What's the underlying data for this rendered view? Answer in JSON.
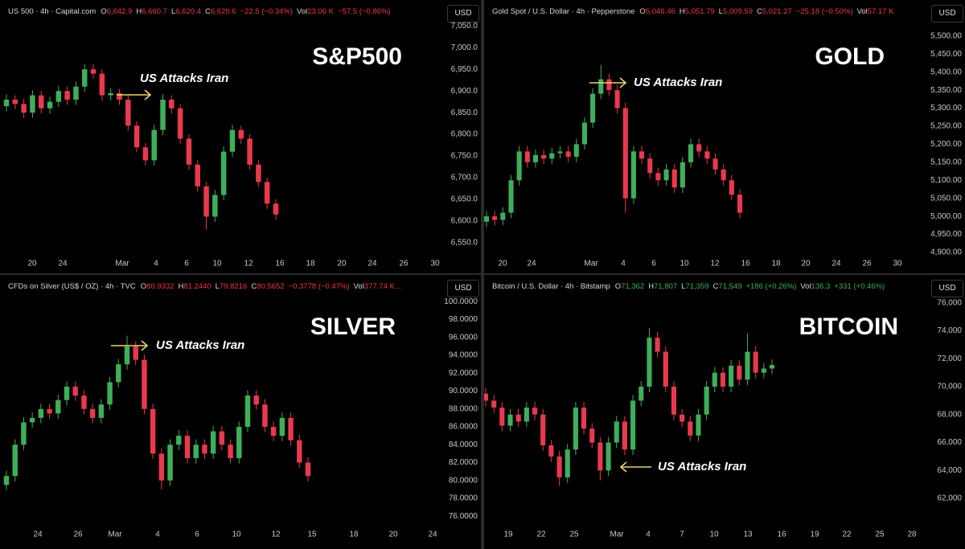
{
  "chart_data": [
    {
      "type": "candlestick",
      "title": "S&P500",
      "annotation": "US Attacks Iran",
      "currency": "USD",
      "legend": {
        "symbol": "US 500 · 4h · Capital.com",
        "fields": [
          {
            "label": "O",
            "value": "6,642.9"
          },
          {
            "label": "H",
            "value": "6,660.7"
          },
          {
            "label": "L",
            "value": "6,620.4"
          },
          {
            "label": "C",
            "value": "6,620.6"
          }
        ],
        "change": "−22.5 (−0.34%)",
        "volume": {
          "label": "Vol",
          "value": "23.06 K"
        },
        "volume_change": "−57.5 (−0.86%)",
        "color": "#f23645"
      },
      "up_color": "#3fae5a",
      "down_color": "#e8394d",
      "open": [
        6865,
        6880,
        6870,
        6850,
        6890,
        6860,
        6875,
        6900,
        6880,
        6910,
        6950,
        6940,
        6890,
        6895,
        6880,
        6820,
        6770,
        6740,
        6810,
        6880,
        6860,
        6790,
        6730,
        6680,
        6610,
        6660,
        6760,
        6810,
        6790,
        6730,
        6690,
        6640
      ],
      "high": [
        6892,
        6890,
        6882,
        6902,
        6900,
        6887,
        6912,
        6910,
        6922,
        6962,
        6962,
        6950,
        6907,
        6905,
        6890,
        6830,
        6780,
        6822,
        6892,
        6890,
        6870,
        6800,
        6740,
        6690,
        6672,
        6772,
        6822,
        6820,
        6800,
        6740,
        6700,
        6650
      ],
      "low": [
        6853,
        6858,
        6838,
        6838,
        6848,
        6848,
        6863,
        6868,
        6868,
        6898,
        6928,
        6878,
        6878,
        6868,
        6808,
        6758,
        6728,
        6728,
        6798,
        6848,
        6778,
        6718,
        6668,
        6580,
        6598,
        6648,
        6748,
        6778,
        6718,
        6678,
        6628,
        6603
      ],
      "close": [
        6880,
        6870,
        6850,
        6890,
        6860,
        6875,
        6900,
        6880,
        6910,
        6950,
        6940,
        6890,
        6895,
        6880,
        6820,
        6770,
        6740,
        6810,
        6880,
        6860,
        6790,
        6730,
        6680,
        6610,
        6660,
        6760,
        6810,
        6790,
        6730,
        6690,
        6640,
        6615
      ],
      "ylim": [
        6520,
        7110
      ],
      "yticks": [
        {
          "value": 6550,
          "label": "6,550.0"
        },
        {
          "value": 6600,
          "label": "6,600.0"
        },
        {
          "value": 6650,
          "label": "6,650.0"
        },
        {
          "value": 6700,
          "label": "6,700.0"
        },
        {
          "value": 6750,
          "label": "6,750.0"
        },
        {
          "value": 6800,
          "label": "6,800.0"
        },
        {
          "value": 6850,
          "label": "6,850.0"
        },
        {
          "value": 6900,
          "label": "6,900.0"
        },
        {
          "value": 6950,
          "label": "6,950.0"
        },
        {
          "value": 7000,
          "label": "7,000.0"
        },
        {
          "value": 7050,
          "label": "7,050.0"
        }
      ],
      "x_labels": [
        "20",
        "24",
        "Mar",
        "4",
        "6",
        "10",
        "12",
        "16",
        "18",
        "20",
        "24",
        "26",
        "30"
      ]
    },
    {
      "type": "candlestick",
      "title": "GOLD",
      "annotation": "US Attacks Iran",
      "currency": "USD",
      "legend": {
        "symbol": "Gold Spot / U.S. Dollar · 4h · Pepperstone",
        "fields": [
          {
            "label": "O",
            "value": "5,046.46"
          },
          {
            "label": "H",
            "value": "5,051.79"
          },
          {
            "label": "L",
            "value": "5,009.59"
          },
          {
            "label": "C",
            "value": "5,021.27"
          }
        ],
        "change": "−25.18 (−0.50%)",
        "volume": {
          "label": "Vol",
          "value": "57.17 K"
        },
        "color": "#f23645"
      },
      "up_color": "#3fae5a",
      "down_color": "#e8394d",
      "open": [
        4985,
        5000,
        4990,
        5010,
        5100,
        5180,
        5150,
        5170,
        5160,
        5175,
        5180,
        5165,
        5200,
        5260,
        5340,
        5380,
        5350,
        5300,
        5050,
        5180,
        5160,
        5120,
        5100,
        5130,
        5080,
        5150,
        5200,
        5180,
        5160,
        5130,
        5100,
        5060
      ],
      "high": [
        5015,
        5015,
        5025,
        5115,
        5195,
        5195,
        5185,
        5185,
        5190,
        5195,
        5195,
        5215,
        5275,
        5355,
        5420,
        5395,
        5365,
        5315,
        5195,
        5195,
        5175,
        5135,
        5145,
        5145,
        5165,
        5215,
        5215,
        5195,
        5175,
        5145,
        5115,
        5075
      ],
      "low": [
        4970,
        4975,
        4975,
        4995,
        5085,
        5135,
        5135,
        5145,
        5145,
        5160,
        5150,
        5150,
        5185,
        5245,
        5325,
        5335,
        5285,
        5010,
        5035,
        5145,
        5105,
        5085,
        5085,
        5065,
        5065,
        5135,
        5165,
        5145,
        5115,
        5085,
        5045,
        4995
      ],
      "close": [
        5000,
        4990,
        5010,
        5100,
        5180,
        5150,
        5170,
        5160,
        5175,
        5180,
        5165,
        5200,
        5260,
        5340,
        5380,
        5350,
        5300,
        5050,
        5180,
        5160,
        5120,
        5100,
        5130,
        5080,
        5150,
        5200,
        5180,
        5160,
        5130,
        5100,
        5060,
        5010
      ],
      "ylim": [
        4891,
        5600
      ],
      "yticks": [
        {
          "value": 4900,
          "label": "4,900.00"
        },
        {
          "value": 4950,
          "label": "4,950.00"
        },
        {
          "value": 5000,
          "label": "5,000.00"
        },
        {
          "value": 5050,
          "label": "5,050.00"
        },
        {
          "value": 5100,
          "label": "5,100.00"
        },
        {
          "value": 5150,
          "label": "5,150.00"
        },
        {
          "value": 5200,
          "label": "5,200.00"
        },
        {
          "value": 5250,
          "label": "5,250.00"
        },
        {
          "value": 5300,
          "label": "5,300.00"
        },
        {
          "value": 5350,
          "label": "5,350.00"
        },
        {
          "value": 5400,
          "label": "5,400.00"
        },
        {
          "value": 5450,
          "label": "5,450.00"
        },
        {
          "value": 5500,
          "label": "5,500.00"
        }
      ],
      "x_labels": [
        "20",
        "24",
        "Mar",
        "4",
        "6",
        "10",
        "12",
        "16",
        "18",
        "20",
        "24",
        "26",
        "30"
      ]
    },
    {
      "type": "candlestick",
      "title": "SILVER",
      "annotation": "US Attacks Iran",
      "currency": "USD",
      "legend": {
        "symbol": "CFDs on Silver (US$ / OZ) · 4h · TVC",
        "fields": [
          {
            "label": "O",
            "value": "80.9332"
          },
          {
            "label": "H",
            "value": "81.2440"
          },
          {
            "label": "L",
            "value": "79.8216"
          },
          {
            "label": "C",
            "value": "80.5652"
          }
        ],
        "change": "−0.3778 (−0.47%)",
        "volume": {
          "label": "Vol",
          "value": "377.74 K..."
        },
        "color": "#f23645"
      },
      "up_color": "#3fae5a",
      "down_color": "#e8394d",
      "open": [
        79.5,
        80.5,
        84,
        86.5,
        87,
        88,
        87.5,
        89,
        90.5,
        89.5,
        88,
        87,
        88.5,
        91,
        93,
        95,
        93.5,
        88,
        83,
        80,
        84,
        85,
        82.5,
        84,
        83,
        85.5,
        84,
        82.5,
        86,
        89.5,
        88.5,
        86,
        85,
        87,
        84.5,
        82
      ],
      "high": [
        81.1,
        84.6,
        87.1,
        87.6,
        88.6,
        88.6,
        89.6,
        91.1,
        91.1,
        90.1,
        88.6,
        89.1,
        91.6,
        93.6,
        96.2,
        95.6,
        94.1,
        88.6,
        83.6,
        84.6,
        85.6,
        85.6,
        84.6,
        84.6,
        86.1,
        86.1,
        84.6,
        86.6,
        90.1,
        90.1,
        89.1,
        86.6,
        87.6,
        87.6,
        85.1,
        82.6
      ],
      "low": [
        78.9,
        79.9,
        83.4,
        85.9,
        86.4,
        86.9,
        86.9,
        88.4,
        88.9,
        87.4,
        86.4,
        86.4,
        87.9,
        90.4,
        92.4,
        92.9,
        87.4,
        82.4,
        79.0,
        79.4,
        83.4,
        81.9,
        81.9,
        82.4,
        82.4,
        83.4,
        81.9,
        81.9,
        85.4,
        87.9,
        85.4,
        84.4,
        84.4,
        83.9,
        81.4,
        79.9
      ],
      "close": [
        80.5,
        84,
        86.5,
        87,
        88,
        87.5,
        89,
        90.5,
        89.5,
        88,
        87,
        88.5,
        91,
        93,
        95,
        93.5,
        88,
        83,
        80,
        84,
        85,
        82.5,
        84,
        83,
        85.5,
        84,
        82.5,
        86,
        89.5,
        88.5,
        86,
        85,
        87,
        84.5,
        82,
        80.5
      ],
      "ylim": [
        74.4,
        103
      ],
      "yticks": [
        {
          "value": 76,
          "label": "76.0000"
        },
        {
          "value": 78,
          "label": "78.0000"
        },
        {
          "value": 80,
          "label": "80.0000"
        },
        {
          "value": 82,
          "label": "82.0000"
        },
        {
          "value": 84,
          "label": "84.0000"
        },
        {
          "value": 86,
          "label": "86.0000"
        },
        {
          "value": 88,
          "label": "88.0000"
        },
        {
          "value": 90,
          "label": "90.0000"
        },
        {
          "value": 92,
          "label": "92.0000"
        },
        {
          "value": 94,
          "label": "94.0000"
        },
        {
          "value": 96,
          "label": "96.0000"
        },
        {
          "value": 98,
          "label": "98.0000"
        },
        {
          "value": 100,
          "label": "100.0000"
        }
      ],
      "x_labels": [
        "24",
        "26",
        "Mar",
        "4",
        "6",
        "10",
        "12",
        "15",
        "18",
        "20",
        "24"
      ]
    },
    {
      "type": "candlestick",
      "title": "BITCOIN",
      "annotation": "US Attacks Iran",
      "currency": "USD",
      "legend": {
        "symbol": "Bitcoin / U.S. Dollar · 4h · Bitstamp",
        "fields": [
          {
            "label": "O",
            "value": "71,362"
          },
          {
            "label": "H",
            "value": "71,807"
          },
          {
            "label": "L",
            "value": "71,359"
          },
          {
            "label": "C",
            "value": "71,549"
          }
        ],
        "change": "+186 (+0.26%)",
        "volume": {
          "label": "Vol",
          "value": "136.3"
        },
        "volume_change": "+331 (+0.46%)",
        "color": "#3fae5a"
      },
      "up_color": "#3fae5a",
      "down_color": "#e8394d",
      "open": [
        69500,
        69000,
        68500,
        67200,
        68000,
        67500,
        68500,
        68000,
        65800,
        65000,
        63500,
        65500,
        68500,
        67000,
        66000,
        64000,
        66000,
        67500,
        65500,
        69000,
        70000,
        73500,
        72500,
        70000,
        68000,
        67500,
        66500,
        68000,
        70000,
        71000,
        70000,
        71500,
        70500,
        72500,
        71000,
        71300
      ],
      "high": [
        69900,
        69400,
        68900,
        68400,
        68400,
        68900,
        68900,
        68400,
        66200,
        65400,
        65900,
        68900,
        68900,
        67400,
        66400,
        66400,
        67900,
        67900,
        69400,
        70400,
        74200,
        73900,
        72900,
        70400,
        68400,
        67900,
        68400,
        70400,
        71400,
        71400,
        71900,
        71900,
        73800,
        72900,
        71700,
        71950
      ],
      "low": [
        68600,
        68100,
        66800,
        66800,
        67100,
        67100,
        67600,
        65400,
        64600,
        62900,
        63100,
        65100,
        66600,
        65600,
        63300,
        63600,
        65600,
        65100,
        65100,
        68600,
        69600,
        72100,
        69600,
        67600,
        67100,
        66100,
        66100,
        67600,
        69600,
        69600,
        69600,
        70100,
        70100,
        70600,
        70600,
        70900
      ],
      "close": [
        69000,
        68500,
        67200,
        68000,
        67500,
        68500,
        68000,
        65800,
        65000,
        63500,
        65500,
        68500,
        67000,
        66000,
        64000,
        66000,
        67500,
        65500,
        69000,
        70000,
        73500,
        72500,
        70000,
        68000,
        67500,
        66500,
        68000,
        70000,
        71000,
        70000,
        71500,
        70500,
        72500,
        71000,
        71300,
        71550
      ],
      "ylim": [
        59700,
        78000
      ],
      "yticks": [
        {
          "value": 62000,
          "label": "62,000"
        },
        {
          "value": 64000,
          "label": "64,000"
        },
        {
          "value": 66000,
          "label": "66,000"
        },
        {
          "value": 68000,
          "label": "68,000"
        },
        {
          "value": 70000,
          "label": "70,000"
        },
        {
          "value": 72000,
          "label": "72,000"
        },
        {
          "value": 74000,
          "label": "74,000"
        },
        {
          "value": 76000,
          "label": "76,000"
        }
      ],
      "x_labels": [
        "19",
        "22",
        "25",
        "Mar",
        "4",
        "7",
        "10",
        "13",
        "16",
        "19",
        "22",
        "25",
        "28"
      ]
    }
  ]
}
